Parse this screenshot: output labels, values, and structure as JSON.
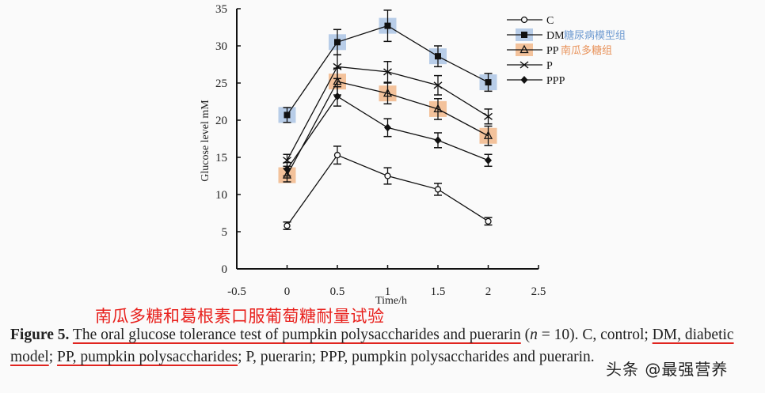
{
  "chart_data": {
    "type": "line",
    "title": "",
    "xlabel": "Time/h",
    "ylabel": "Glucose level mM",
    "xlim": [
      -0.5,
      2.5
    ],
    "ylim": [
      0,
      35
    ],
    "x_ticks": [
      "-0.5",
      "0",
      "0.5",
      "1",
      "1.5",
      "2",
      "2.5"
    ],
    "y_ticks": [
      "0",
      "5",
      "10",
      "15",
      "20",
      "25",
      "30",
      "35"
    ],
    "x": [
      0,
      0.5,
      1,
      1.5,
      2
    ],
    "grid": false,
    "legend_position": "top-right",
    "series": [
      {
        "name": "C",
        "marker": "open-circle",
        "values": [
          5.8,
          15.3,
          12.5,
          10.7,
          6.4
        ],
        "errors": [
          0.5,
          1.2,
          1.1,
          0.8,
          0.5
        ],
        "highlight": null
      },
      {
        "name": "DM",
        "marker": "filled-square",
        "values": [
          20.7,
          30.5,
          32.7,
          28.6,
          25.1
        ],
        "errors": [
          1.0,
          1.7,
          2.1,
          1.4,
          1.2
        ],
        "highlight": "#b8cde8",
        "annotation": "糖尿病模型组"
      },
      {
        "name": "PP",
        "marker": "open-triangle",
        "values": [
          12.6,
          25.2,
          23.6,
          21.5,
          17.9
        ],
        "errors": [
          0.9,
          1.8,
          1.4,
          1.4,
          1.3
        ],
        "highlight": "#f3c29b",
        "annotation": "南瓜多糖组"
      },
      {
        "name": "P",
        "marker": "x-cross",
        "values": [
          14.6,
          27.2,
          26.5,
          24.7,
          20.5
        ],
        "errors": [
          0.8,
          1.6,
          1.4,
          1.3,
          1.0
        ],
        "highlight": null
      },
      {
        "name": "PPP",
        "marker": "filled-diamond",
        "values": [
          13.4,
          23.2,
          19.0,
          17.3,
          14.6
        ],
        "errors": [
          0.9,
          1.3,
          1.2,
          1.0,
          0.8
        ],
        "highlight": null
      }
    ]
  },
  "colors": {
    "line": "#111111",
    "dm_highlight": "#b8cde8",
    "pp_highlight": "#f3c29b",
    "dm_annotation_text": "#6f9bd1",
    "pp_annotation_text": "#e8925a",
    "cn_title": "#e8201c",
    "underline": "#e0241f"
  },
  "annotation_title_cn": "南瓜多糖和葛根素口服葡萄糖耐量试验",
  "caption": {
    "label": "Figure 5.",
    "part1_underlined": "The oral glucose tolerance test of pumpkin polysaccharides and puerarin",
    "part2": " (",
    "n_symbol": "n",
    "part3": " = 10). C, control; ",
    "part4_underlined": "DM, diabetic model",
    "part5": "; ",
    "part6_underlined": "PP, pumpkin polysaccharides",
    "part7": ";  P, puerarin;  PPP, pumpkin polysaccharides and puerarin."
  },
  "watermark": "头条 @最强营养"
}
